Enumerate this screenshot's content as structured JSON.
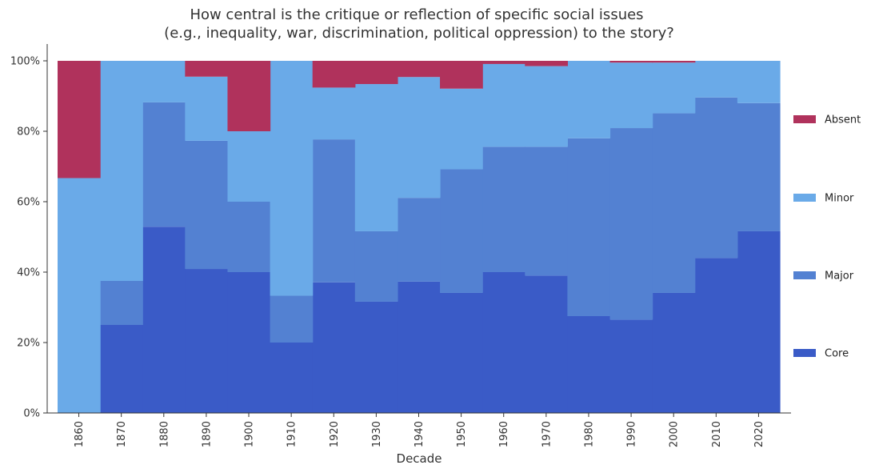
{
  "chart_data": {
    "type": "stacked-area-step",
    "title_lines": [
      "How central is the critique or reflection of specific social issues",
      "(e.g., inequality, war, discrimination, political oppression) to the story?"
    ],
    "xlabel": "Decade",
    "ylabel": "",
    "categories": [
      "1860",
      "1870",
      "1880",
      "1890",
      "1900",
      "1910",
      "1920",
      "1930",
      "1940",
      "1950",
      "1960",
      "1970",
      "1980",
      "1990",
      "2000",
      "2010",
      "2020"
    ],
    "ylim": [
      0,
      1
    ],
    "yticks": [
      0,
      0.2,
      0.4,
      0.6,
      0.8,
      1.0
    ],
    "ytick_labels": [
      "0%",
      "20%",
      "40%",
      "60%",
      "80%",
      "100%"
    ],
    "grid": false,
    "legend_position": "right",
    "series": [
      {
        "name": "Core",
        "color": "#3a5bc7",
        "values": [
          0,
          0.25,
          0.529,
          0.409,
          0.4,
          0.2,
          0.371,
          0.316,
          0.373,
          0.341,
          0.4,
          0.39,
          0.275,
          0.265,
          0.341,
          0.44,
          0.516
        ]
      },
      {
        "name": "Major",
        "color": "#5381d2",
        "values": [
          0,
          0.125,
          0.353,
          0.364,
          0.2,
          0.133,
          0.406,
          0.2,
          0.238,
          0.351,
          0.356,
          0.366,
          0.505,
          0.544,
          0.51,
          0.456,
          0.364
        ]
      },
      {
        "name": "Minor",
        "color": "#6aaae8",
        "values": [
          0.667,
          0.625,
          0.118,
          0.182,
          0.2,
          0.667,
          0.147,
          0.418,
          0.343,
          0.229,
          0.235,
          0.229,
          0.22,
          0.186,
          0.144,
          0.104,
          0.12
        ]
      },
      {
        "name": "Absent",
        "color": "#b0325c",
        "values": [
          0.333,
          0,
          0,
          0.045,
          0.2,
          0,
          0.076,
          0.066,
          0.046,
          0.079,
          0.009,
          0.015,
          0,
          0.005,
          0.005,
          0,
          0
        ]
      }
    ],
    "legend_order": [
      "Absent",
      "Minor",
      "Major",
      "Core"
    ]
  }
}
